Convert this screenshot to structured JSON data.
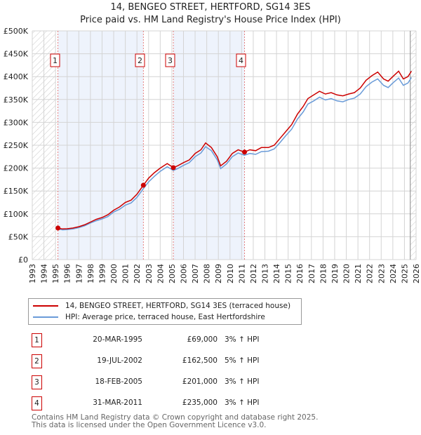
{
  "chart_data": {
    "type": "line",
    "title": "14, BENGEO STREET, HERTFORD, SG14 3ES",
    "subtitle": "Price paid vs. HM Land Registry's House Price Index (HPI)",
    "xlim": [
      1993,
      2026
    ],
    "ylim": [
      0,
      500000
    ],
    "x_ticks": [
      "1993",
      "1994",
      "1995",
      "1996",
      "1997",
      "1998",
      "1999",
      "2000",
      "2001",
      "2002",
      "2003",
      "2004",
      "2005",
      "2006",
      "2007",
      "2008",
      "2009",
      "2010",
      "2011",
      "2012",
      "2013",
      "2014",
      "2015",
      "2016",
      "2017",
      "2018",
      "2019",
      "2020",
      "2021",
      "2022",
      "2023",
      "2024",
      "2025",
      "2026"
    ],
    "y_ticks": [
      {
        "v": 0,
        "label": "£0"
      },
      {
        "v": 50000,
        "label": "£50K"
      },
      {
        "v": 100000,
        "label": "£100K"
      },
      {
        "v": 150000,
        "label": "£150K"
      },
      {
        "v": 200000,
        "label": "£200K"
      },
      {
        "v": 250000,
        "label": "£250K"
      },
      {
        "v": 300000,
        "label": "£300K"
      },
      {
        "v": 350000,
        "label": "£350K"
      },
      {
        "v": 400000,
        "label": "£400K"
      },
      {
        "v": 450000,
        "label": "£450K"
      },
      {
        "v": 500000,
        "label": "£500K"
      }
    ],
    "grid": true,
    "legend_placement": "below",
    "series": [
      {
        "name": "14, BENGEO STREET, HERTFORD, SG14 3ES (terraced house)",
        "color": "#cc0000",
        "x": [
          1995.21,
          1995.6,
          1996,
          1996.5,
          1997,
          1997.5,
          1998,
          1998.5,
          1999,
          1999.5,
          2000,
          2000.5,
          2001,
          2001.5,
          2002,
          2002.55,
          2003,
          2003.5,
          2004,
          2004.6,
          2005.13,
          2005.5,
          2006,
          2006.5,
          2007,
          2007.5,
          2007.9,
          2008.4,
          2008.9,
          2009.2,
          2009.7,
          2010.2,
          2010.7,
          2011.25,
          2011.7,
          2012.2,
          2012.7,
          2013.3,
          2013.8,
          2014.3,
          2014.8,
          2015.3,
          2015.8,
          2016.3,
          2016.7,
          2017.2,
          2017.7,
          2018.2,
          2018.7,
          2019.2,
          2019.7,
          2020.2,
          2020.7,
          2021.2,
          2021.7,
          2022.2,
          2022.7,
          2023.2,
          2023.6,
          2024.0,
          2024.5,
          2024.9,
          2025.3,
          2025.6
        ],
        "y": [
          69000,
          67000,
          67500,
          69000,
          72000,
          76000,
          82000,
          88000,
          92000,
          98000,
          108000,
          115000,
          125000,
          130000,
          143000,
          162500,
          178000,
          190000,
          200000,
          210000,
          201000,
          205000,
          212000,
          218000,
          232000,
          240000,
          255000,
          245000,
          225000,
          205000,
          215000,
          232000,
          240000,
          235000,
          240000,
          238000,
          245000,
          245000,
          250000,
          265000,
          280000,
          295000,
          318000,
          335000,
          352000,
          360000,
          368000,
          362000,
          365000,
          360000,
          358000,
          362000,
          365000,
          375000,
          392000,
          402000,
          410000,
          395000,
          390000,
          400000,
          412000,
          395000,
          400000,
          412000
        ]
      },
      {
        "name": "HPI: Average price, terraced house, East Hertfordshire",
        "color": "#6a9bd8",
        "x": [
          1995.21,
          1995.6,
          1996,
          1996.5,
          1997,
          1997.5,
          1998,
          1998.5,
          1999,
          1999.5,
          2000,
          2000.5,
          2001,
          2001.5,
          2002,
          2002.55,
          2003,
          2003.5,
          2004,
          2004.6,
          2005.13,
          2005.5,
          2006,
          2006.5,
          2007,
          2007.5,
          2007.9,
          2008.4,
          2008.9,
          2009.2,
          2009.7,
          2010.2,
          2010.7,
          2011.25,
          2011.7,
          2012.2,
          2012.7,
          2013.3,
          2013.8,
          2014.3,
          2014.8,
          2015.3,
          2015.8,
          2016.3,
          2016.7,
          2017.2,
          2017.7,
          2018.2,
          2018.7,
          2019.2,
          2019.7,
          2020.2,
          2020.7,
          2021.2,
          2021.7,
          2022.2,
          2022.7,
          2023.2,
          2023.6,
          2024.0,
          2024.5,
          2024.9,
          2025.3,
          2025.6
        ],
        "y": [
          67000,
          65000,
          65500,
          67000,
          70000,
          74000,
          80000,
          85000,
          89000,
          94000,
          104000,
          110000,
          119000,
          124000,
          136000,
          155000,
          170000,
          182000,
          193000,
          203000,
          195000,
          199000,
          206000,
          212000,
          225000,
          233000,
          247000,
          238000,
          218000,
          199000,
          209000,
          225000,
          233000,
          228000,
          232000,
          230000,
          236000,
          237000,
          242000,
          256000,
          271000,
          285000,
          307000,
          323000,
          340000,
          347000,
          355000,
          349000,
          352000,
          347000,
          345000,
          350000,
          353000,
          362000,
          378000,
          388000,
          395000,
          381000,
          376000,
          386000,
          397000,
          381000,
          386000,
          398000
        ]
      }
    ],
    "sales": [
      {
        "num": "1",
        "x": 1995.21,
        "y": 69000
      },
      {
        "num": "2",
        "x": 2002.55,
        "y": 162500
      },
      {
        "num": "3",
        "x": 2005.13,
        "y": 201000
      },
      {
        "num": "4",
        "x": 2011.25,
        "y": 235000
      }
    ],
    "shaded_ranges": [
      [
        1995.21,
        2002.55
      ],
      [
        2005.13,
        2011.25
      ]
    ],
    "hatched_ranges": [
      [
        1993,
        1995.0
      ],
      [
        2025.5,
        2026
      ]
    ]
  },
  "legend": {
    "red_label": "14, BENGEO STREET, HERTFORD, SG14 3ES (terraced house)",
    "blue_label": "HPI: Average price, terraced house, East Hertfordshire"
  },
  "table": [
    {
      "num": "1",
      "date": "20-MAR-1995",
      "price": "£69,000",
      "hpi": "3% ↑ HPI"
    },
    {
      "num": "2",
      "date": "19-JUL-2002",
      "price": "£162,500",
      "hpi": "5% ↑ HPI"
    },
    {
      "num": "3",
      "date": "18-FEB-2005",
      "price": "£201,000",
      "hpi": "3% ↑ HPI"
    },
    {
      "num": "4",
      "date": "31-MAR-2011",
      "price": "£235,000",
      "hpi": "3% ↑ HPI"
    }
  ],
  "footer": {
    "line1": "Contains HM Land Registry data © Crown copyright and database right 2025.",
    "line2": "This data is licensed under the Open Government Licence v3.0."
  }
}
